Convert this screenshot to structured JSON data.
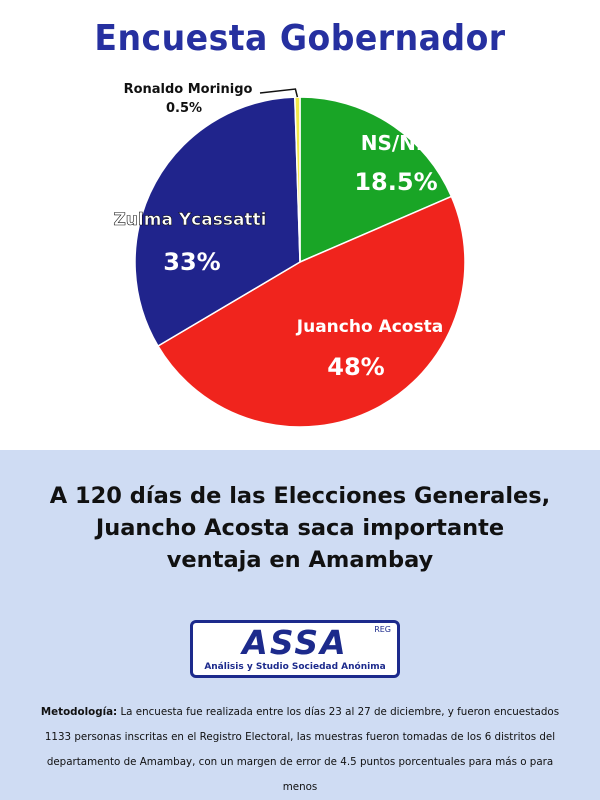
{
  "chart_data": {
    "type": "pie",
    "title": "Encuesta Gobernador",
    "slices": [
      {
        "label": "NS/NR",
        "value": 18.5,
        "value_label": "18.5%",
        "color": "#19a526"
      },
      {
        "label": "Juancho Acosta",
        "value": 48,
        "value_label": "48%",
        "color": "#f0241d"
      },
      {
        "label": "Zulma Ycassatti",
        "value": 33,
        "value_label": "33%",
        "color": "#20248c"
      },
      {
        "label": "Ronaldo Morinigo",
        "value": 0.5,
        "value_label": "0.5%",
        "color": "#f2e84a"
      }
    ],
    "start": "12 o'clock, clockwise"
  },
  "headline": {
    "line1": "A 120 días de las Elecciones Generales,",
    "line2": "Juancho Acosta saca importante",
    "line3": "ventaja en Amambay"
  },
  "logo": {
    "wordmark": "ASSA",
    "registered": "REG",
    "subtitle": "Análisis y Studio Sociedad Anónima"
  },
  "methodology": {
    "label": "Metodología:",
    "text": " La encuesta fue realizada entre los días 23 al 27 de diciembre, y fueron encuestados 1133 personas inscritas en el Registro Electoral, las muestras fueron tomadas de los 6 distritos del departamento de Amambay, con un margen de error de 4.5 puntos porcentuales para más o para menos"
  }
}
